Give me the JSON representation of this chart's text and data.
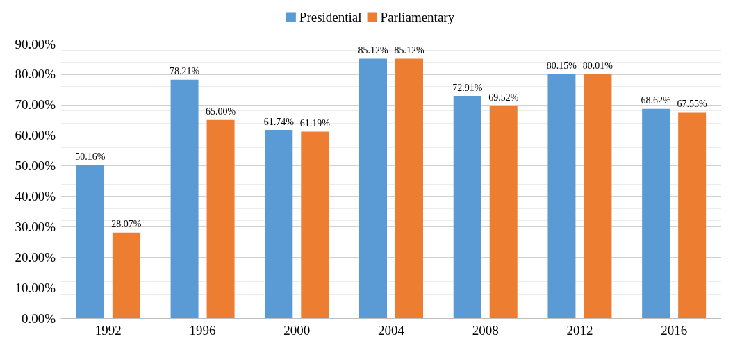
{
  "chart_data": {
    "type": "bar",
    "categories": [
      "1992",
      "1996",
      "2000",
      "2004",
      "2008",
      "2012",
      "2016"
    ],
    "series": [
      {
        "name": "Presidential",
        "color": "#5b9bd5",
        "values": [
          50.16,
          78.21,
          61.74,
          85.12,
          72.91,
          80.15,
          68.62
        ],
        "value_labels": [
          "50.16%",
          "78.21%",
          "61.74%",
          "85.12%",
          "72.91%",
          "80.15%",
          "68.62%"
        ]
      },
      {
        "name": "Parliamentary",
        "color": "#ed7d31",
        "values": [
          28.07,
          65.0,
          61.19,
          85.12,
          69.52,
          80.01,
          67.55
        ],
        "value_labels": [
          "28.07%",
          "65.00%",
          "61.19%",
          "85.12%",
          "69.52%",
          "80.01%",
          "67.55%"
        ]
      }
    ],
    "ylim": [
      0,
      90
    ],
    "yticks": [
      {
        "value": 0,
        "label": "0.00%"
      },
      {
        "value": 10,
        "label": "10.00%"
      },
      {
        "value": 20,
        "label": "20.00%"
      },
      {
        "value": 30,
        "label": "30.00%"
      },
      {
        "value": 40,
        "label": "40.00%"
      },
      {
        "value": 50,
        "label": "50.00%"
      },
      {
        "value": 60,
        "label": "60.00%"
      },
      {
        "value": 70,
        "label": "70.00%"
      },
      {
        "value": 80,
        "label": "80.00%"
      },
      {
        "value": 90,
        "label": "90.00%"
      }
    ],
    "grid": "y",
    "legend": "top"
  }
}
